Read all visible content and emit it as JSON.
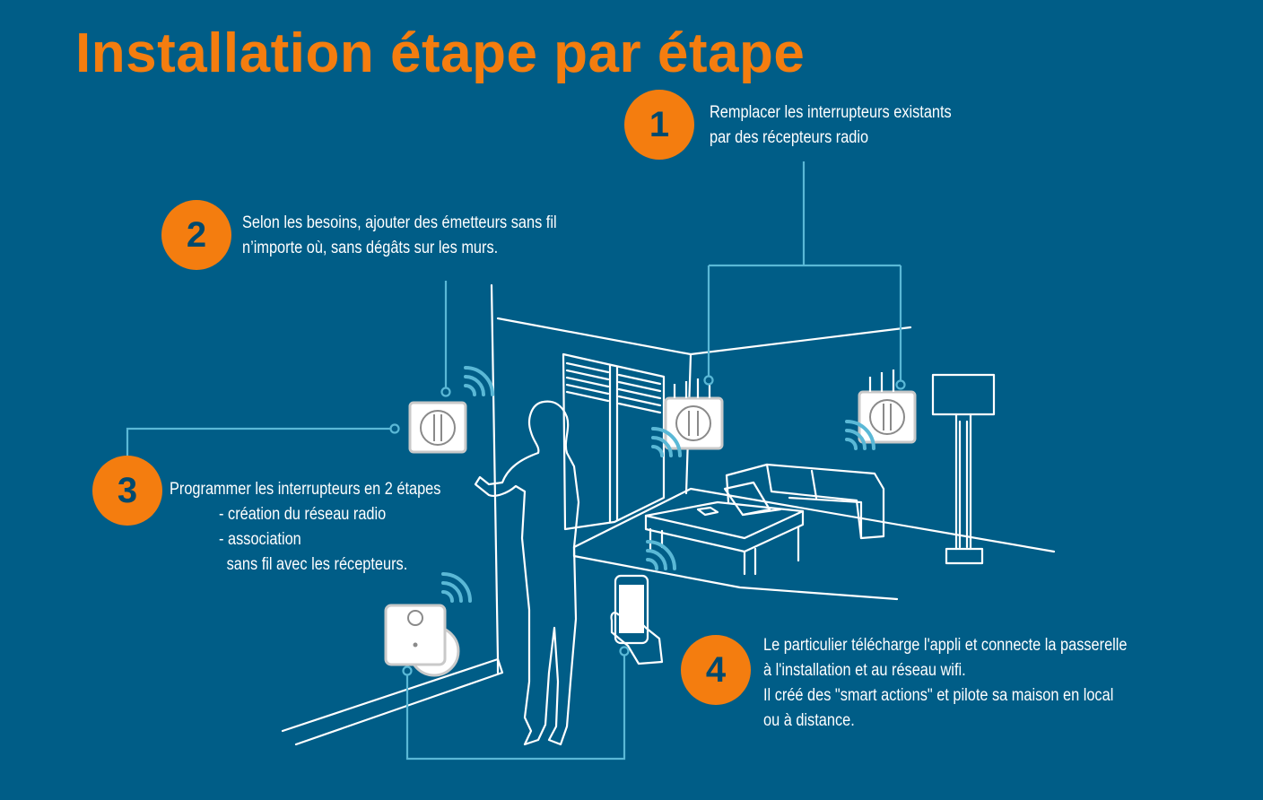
{
  "title": "Installation étape par étape",
  "colors": {
    "background": "#005d87",
    "accent": "#f47d0f",
    "line": "#5ab8d6",
    "drawing": "#ffffff"
  },
  "steps": [
    {
      "number": "1",
      "lines": [
        "Remplacer les interrupteurs existants",
        "par des récepteurs radio"
      ]
    },
    {
      "number": "2",
      "lines": [
        "Selon les besoins, ajouter des émetteurs sans fil",
        "n’importe où, sans dégâts sur les murs."
      ]
    },
    {
      "number": "3",
      "lines": [
        "Programmer les interrupteurs en 2 étapes",
        "- création du réseau radio",
        "- association",
        "sans fil avec les récepteurs."
      ]
    },
    {
      "number": "4",
      "lines": [
        "Le particulier télécharge l'appli et connecte la passerelle",
        "à l'installation et au réseau wifi.",
        "Il créé des \"smart actions\" et pilote sa maison en local",
        "ou à distance."
      ]
    }
  ],
  "icons": [
    "wall-switch-icon",
    "wireless-signal-icon",
    "smartphone-icon",
    "gateway-icon",
    "floor-lamp-icon",
    "sofa-icon",
    "coffee-table-icon",
    "laptop-icon",
    "woman-silhouette-icon",
    "window-icon"
  ]
}
